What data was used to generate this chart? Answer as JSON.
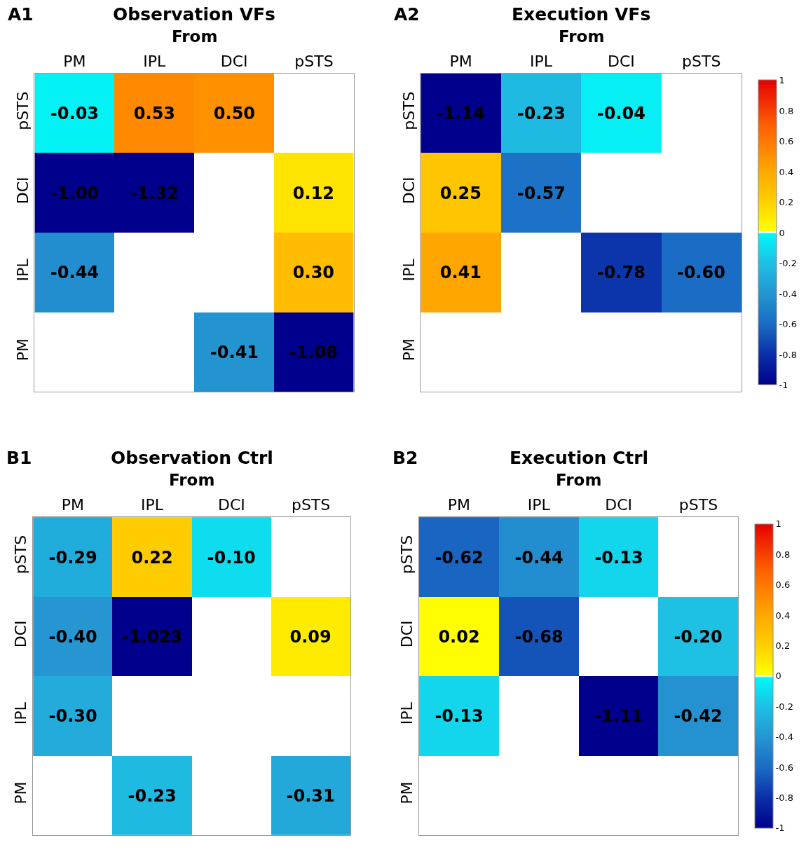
{
  "chart_data": [
    {
      "type": "heatmap",
      "title": "Observation VFs",
      "xlabel": "From",
      "annotations": [
        "A1"
      ],
      "categories": [
        "PM",
        "IPL",
        "DCI",
        "pSTS"
      ],
      "y_categories": [
        "pSTS",
        "DCI",
        "IPL",
        "PM"
      ],
      "cells": [
        [
          -0.03,
          0.53,
          0.5,
          null
        ],
        [
          -1.0,
          -1.32,
          null,
          0.12
        ],
        [
          -0.44,
          null,
          null,
          0.3
        ],
        [
          null,
          null,
          -0.41,
          -1.08
        ]
      ],
      "cell_labels": [
        [
          "-0.03",
          "0.53",
          "0.50",
          null
        ],
        [
          "-1.00",
          "-1.32",
          null,
          "0.12"
        ],
        [
          "-0.44",
          null,
          null,
          "0.30"
        ],
        [
          null,
          null,
          "-0.41",
          "-1.08"
        ]
      ]
    },
    {
      "type": "heatmap",
      "title": "Execution VFs",
      "xlabel": "From",
      "annotations": [
        "A2"
      ],
      "categories": [
        "PM",
        "IPL",
        "DCI",
        "pSTS"
      ],
      "y_categories": [
        "pSTS",
        "DCI",
        "IPL",
        "PM"
      ],
      "cells": [
        [
          -1.14,
          -0.23,
          -0.04,
          null
        ],
        [
          0.25,
          -0.57,
          null,
          null
        ],
        [
          0.41,
          null,
          -0.78,
          -0.6
        ],
        [
          null,
          null,
          null,
          null
        ]
      ],
      "cell_labels": [
        [
          "-1.14",
          "-0.23",
          "-0.04",
          null
        ],
        [
          "0.25",
          "-0.57",
          null,
          null
        ],
        [
          "0.41",
          null,
          "-0.78",
          "-0.60"
        ],
        [
          null,
          null,
          null,
          null
        ]
      ],
      "clim": [
        -1,
        1
      ],
      "cticks": [
        -1,
        -0.8,
        -0.6,
        -0.4,
        -0.2,
        0,
        0.2,
        0.4,
        0.6,
        0.8,
        1
      ]
    },
    {
      "type": "heatmap",
      "title": "Observation Ctrl",
      "xlabel": "From",
      "annotations": [
        "B1"
      ],
      "categories": [
        "PM",
        "IPL",
        "DCI",
        "pSTS"
      ],
      "y_categories": [
        "pSTS",
        "DCI",
        "IPL",
        "PM"
      ],
      "cells": [
        [
          -0.29,
          0.22,
          -0.1,
          null
        ],
        [
          -0.4,
          -1.023,
          null,
          0.09
        ],
        [
          -0.3,
          null,
          null,
          null
        ],
        [
          null,
          -0.23,
          null,
          -0.31
        ]
      ],
      "cell_labels": [
        [
          "-0.29",
          "0.22",
          "-0.10",
          null
        ],
        [
          "-0.40",
          "-1.023",
          null,
          "0.09"
        ],
        [
          "-0.30",
          null,
          null,
          null
        ],
        [
          null,
          "-0.23",
          null,
          "-0.31"
        ]
      ]
    },
    {
      "type": "heatmap",
      "title": "Execution Ctrl",
      "xlabel": "From",
      "annotations": [
        "B2"
      ],
      "categories": [
        "PM",
        "IPL",
        "DCI",
        "pSTS"
      ],
      "y_categories": [
        "pSTS",
        "DCI",
        "IPL",
        "PM"
      ],
      "cells": [
        [
          -0.62,
          -0.44,
          -0.13,
          null
        ],
        [
          0.02,
          -0.68,
          null,
          -0.2
        ],
        [
          -0.13,
          null,
          -1.11,
          -0.42
        ],
        [
          null,
          null,
          null,
          null
        ]
      ],
      "cell_labels": [
        [
          "-0.62",
          "-0.44",
          "-0.13",
          null
        ],
        [
          "0.02",
          "-0.68",
          null,
          "-0.20"
        ],
        [
          "-0.13",
          null,
          "-1.11",
          "-0.42"
        ],
        [
          null,
          null,
          null,
          null
        ]
      ],
      "clim": [
        -1,
        1
      ],
      "cticks": [
        -1,
        -0.8,
        -0.6,
        -0.4,
        -0.2,
        0,
        0.2,
        0.4,
        0.6,
        0.8,
        1
      ]
    }
  ]
}
